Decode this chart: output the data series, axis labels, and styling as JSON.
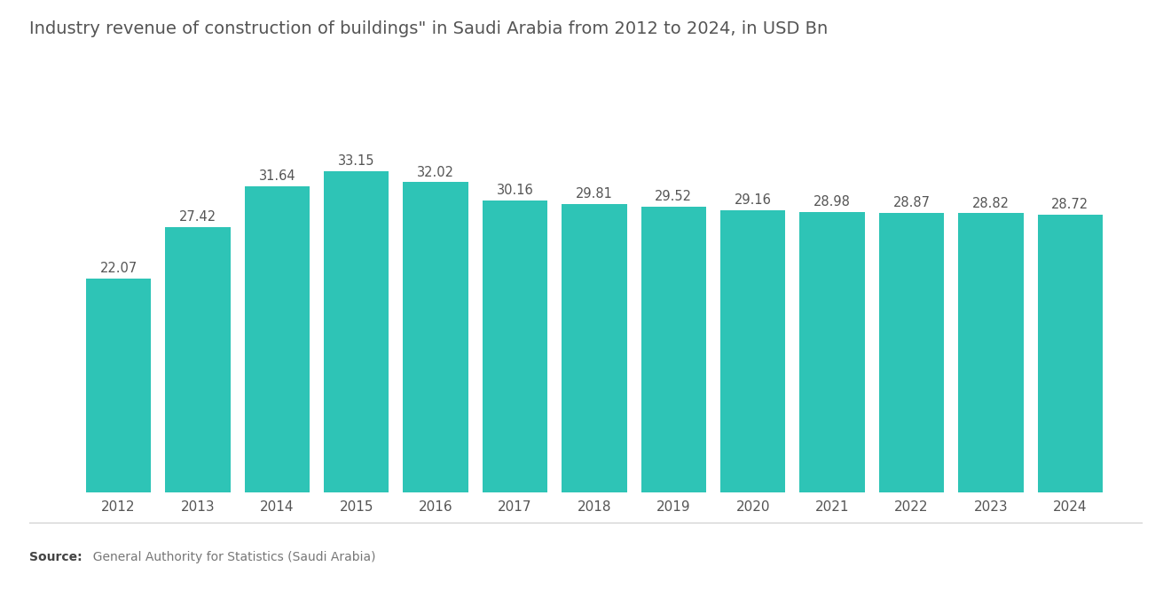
{
  "title": "Industry revenue of construction of buildings\" in Saudi Arabia from 2012 to 2024, in USD Bn",
  "years": [
    "2012",
    "2013",
    "2014",
    "2015",
    "2016",
    "2017",
    "2018",
    "2019",
    "2020",
    "2021",
    "2022",
    "2023",
    "2024"
  ],
  "values": [
    22.07,
    27.42,
    31.64,
    33.15,
    32.02,
    30.16,
    29.81,
    29.52,
    29.16,
    28.98,
    28.87,
    28.82,
    28.72
  ],
  "bar_color": "#2EC4B6",
  "background_color": "#FFFFFF",
  "title_fontsize": 14,
  "label_fontsize": 10.5,
  "tick_fontsize": 11,
  "source_bold": "Source:",
  "source_normal": "  General Authority for Statistics (Saudi Arabia)",
  "ylim": [
    0,
    42
  ],
  "bar_width": 0.82
}
